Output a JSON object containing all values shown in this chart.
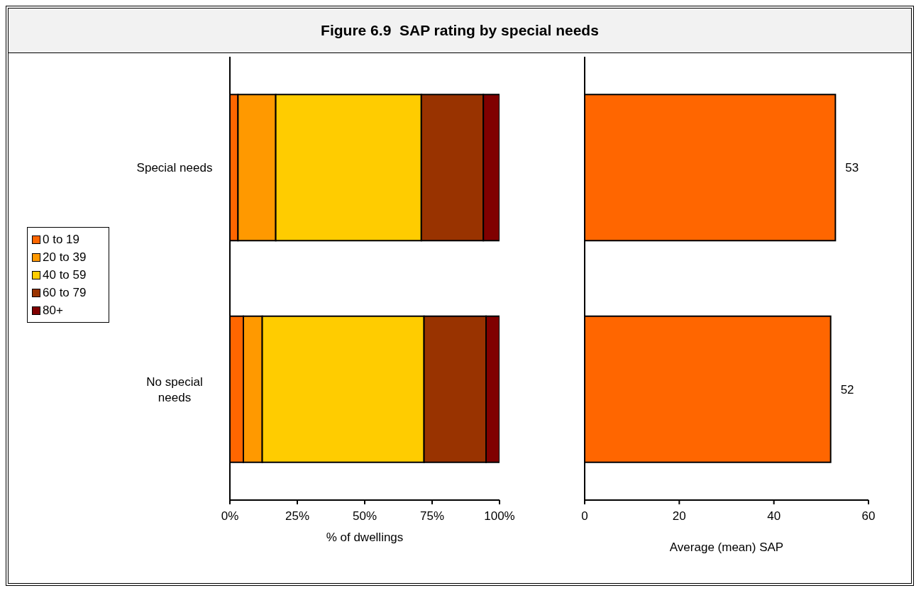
{
  "chart_data": [
    {
      "type": "bar",
      "orientation": "horizontal",
      "stacked": true,
      "title": "Figure 6.9  SAP rating by special needs",
      "categories": [
        "Special needs",
        "No special needs"
      ],
      "xlabel": "% of dwellings",
      "xlim": [
        0,
        100
      ],
      "xticks": [
        {
          "value": 0,
          "label": "0%"
        },
        {
          "value": 25,
          "label": "25%"
        },
        {
          "value": 50,
          "label": "50%"
        },
        {
          "value": 75,
          "label": "75%"
        },
        {
          "value": 100,
          "label": "100%"
        }
      ],
      "legend": "left",
      "grid": false,
      "series": [
        {
          "name": "0 to 19",
          "color": "#ff6600",
          "values": [
            3,
            5
          ]
        },
        {
          "name": "20 to 39",
          "color": "#ff9900",
          "values": [
            14,
            7
          ]
        },
        {
          "name": "40 to 59",
          "color": "#ffcc00",
          "values": [
            54,
            60
          ]
        },
        {
          "name": "60 to 79",
          "color": "#993300",
          "values": [
            23,
            23
          ]
        },
        {
          "name": "80+",
          "color": "#800000",
          "values": [
            6,
            5
          ]
        }
      ]
    },
    {
      "type": "bar",
      "orientation": "horizontal",
      "categories": [
        null,
        null
      ],
      "xlabel": "Average (mean) SAP",
      "xlim": [
        0,
        60
      ],
      "xticks": [
        0,
        20,
        40,
        60
      ],
      "tick_labels": "x",
      "data_labels": true,
      "grid": false,
      "series": [
        {
          "color": "#ff6600",
          "values": [
            53,
            52
          ]
        }
      ]
    }
  ]
}
